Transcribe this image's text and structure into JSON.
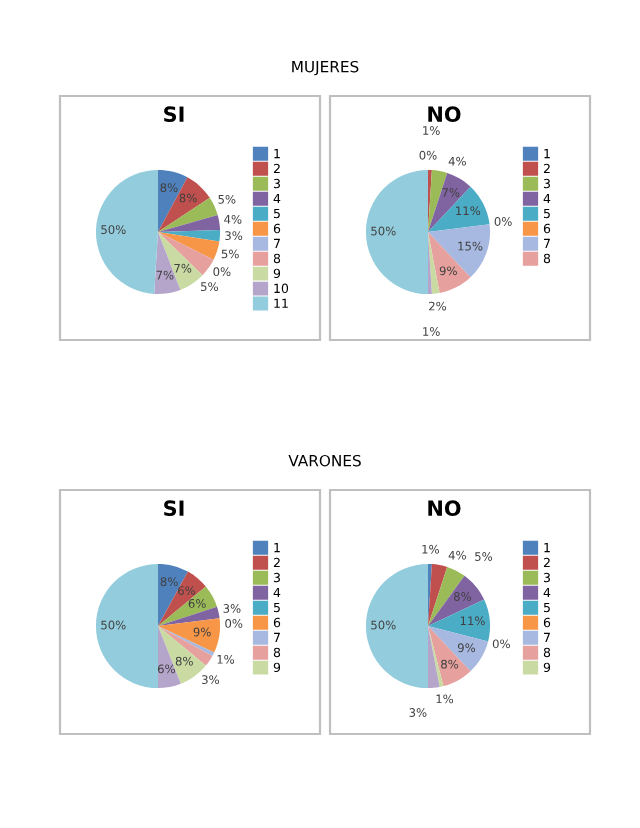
{
  "chart_data": [
    {
      "type": "pie",
      "title": "SI",
      "annotations": [
        "MUJERES"
      ],
      "legend": "right",
      "value_labels": [
        "8%",
        "8%",
        "5%",
        "4%",
        "3%",
        "5%",
        "0%",
        "5%",
        "7%",
        "7%",
        "50%"
      ],
      "categories": [
        "1",
        "2",
        "3",
        "4",
        "5",
        "6",
        "7",
        "8",
        "9",
        "10",
        "11"
      ],
      "values": [
        8,
        8,
        5,
        4,
        3,
        5,
        0,
        5,
        7,
        7,
        50
      ],
      "colors": [
        "#4f81bd",
        "#c0504d",
        "#9bbb59",
        "#8064a2",
        "#4bacc6",
        "#f79646",
        "#a7b9e0",
        "#e6a09e",
        "#c9dba3",
        "#b5a5cb",
        "#93cddd"
      ]
    },
    {
      "type": "pie",
      "title": "NO",
      "legend": "right",
      "value_labels": [
        "0%",
        "1%",
        "4%",
        "7%",
        "11%",
        "0%",
        "15%",
        "9%",
        "2%",
        "1%",
        "50%"
      ],
      "categories": [
        "1",
        "2",
        "3",
        "4",
        "5",
        "6",
        "7",
        "8",
        null,
        null,
        null
      ],
      "values": [
        0,
        1,
        4,
        7,
        11,
        0,
        15,
        9,
        2,
        1,
        50
      ],
      "colors": [
        "#4f81bd",
        "#c0504d",
        "#9bbb59",
        "#8064a2",
        "#4bacc6",
        "#f79646",
        "#a7b9e0",
        "#e6a09e",
        "#c9dba3",
        "#b5a5cb",
        "#93cddd"
      ]
    },
    {
      "type": "pie",
      "title": "SI",
      "annotations": [
        "VARONES"
      ],
      "legend": "right",
      "value_labels": [
        "8%",
        "6%",
        "6%",
        "3%",
        "0%",
        "9%",
        "1%",
        "3%",
        "8%",
        "6%",
        "50%"
      ],
      "categories": [
        "1",
        "2",
        "3",
        "4",
        "5",
        "6",
        "7",
        "8",
        "9",
        null,
        null
      ],
      "values": [
        8,
        6,
        6,
        3,
        0,
        9,
        1,
        3,
        8,
        6,
        50
      ],
      "colors": [
        "#4f81bd",
        "#c0504d",
        "#9bbb59",
        "#8064a2",
        "#4bacc6",
        "#f79646",
        "#a7b9e0",
        "#e6a09e",
        "#c9dba3",
        "#b5a5cb",
        "#93cddd"
      ]
    },
    {
      "type": "pie",
      "title": "NO",
      "legend": "right",
      "value_labels": [
        "1%",
        "4%",
        "5%",
        "8%",
        "11%",
        "0%",
        "9%",
        "8%",
        "1%",
        "3%",
        "50%"
      ],
      "categories": [
        "1",
        "2",
        "3",
        "4",
        "5",
        "6",
        "7",
        "8",
        "9",
        null,
        null
      ],
      "values": [
        1,
        4,
        5,
        8,
        11,
        0,
        9,
        8,
        1,
        3,
        50
      ],
      "colors": [
        "#4f81bd",
        "#c0504d",
        "#9bbb59",
        "#8064a2",
        "#4bacc6",
        "#f79646",
        "#a7b9e0",
        "#e6a09e",
        "#c9dba3",
        "#b5a5cb",
        "#93cddd"
      ]
    }
  ]
}
